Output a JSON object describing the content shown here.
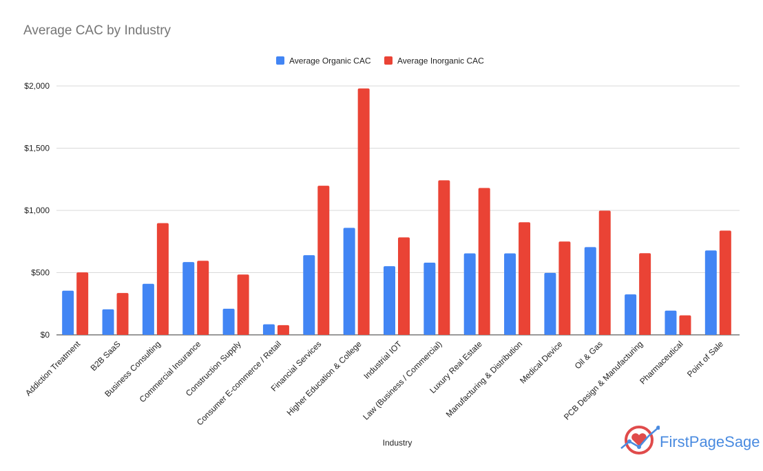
{
  "brand": {
    "name": "FirstPageSage",
    "colors": {
      "circle": "#e04b4b",
      "line": "#4a8be0"
    }
  },
  "chart_data": {
    "type": "bar",
    "title": "Average CAC by Industry",
    "xlabel": "Industry",
    "ylabel": "",
    "ylim": [
      0,
      2000
    ],
    "yticks": [
      0,
      500,
      1000,
      1500,
      2000
    ],
    "ytick_labels": [
      "$0",
      "$500",
      "$1,000",
      "$1,500",
      "$2,000"
    ],
    "grid": true,
    "legend_position": "top-center",
    "categories": [
      "Addiction Treatment",
      "B2B SaaS",
      "Business Consulting",
      "Commercial Insurance",
      "Construction Supply",
      "Consumer E-commerce / Retail",
      "Financial Services",
      "Higher Education & College",
      "Industrial IOT",
      "Law (Business / Commercial)",
      "Luxury Real Estate",
      "Manufacturing & Distribution",
      "Medical Device",
      "Oil & Gas",
      "PCB Design & Manufacturing",
      "Pharmaceutical",
      "Point of Sale"
    ],
    "series": [
      {
        "name": "Average Organic CAC",
        "color": "#4285f4",
        "values": [
          355,
          205,
          410,
          585,
          210,
          85,
          640,
          860,
          552,
          580,
          655,
          655,
          498,
          705,
          325,
          195,
          678
        ]
      },
      {
        "name": "Average Inorganic CAC",
        "color": "#ea4335",
        "values": [
          502,
          336,
          898,
          595,
          485,
          78,
          1198,
          1980,
          783,
          1242,
          1180,
          905,
          750,
          998,
          656,
          157,
          838
        ]
      }
    ]
  }
}
